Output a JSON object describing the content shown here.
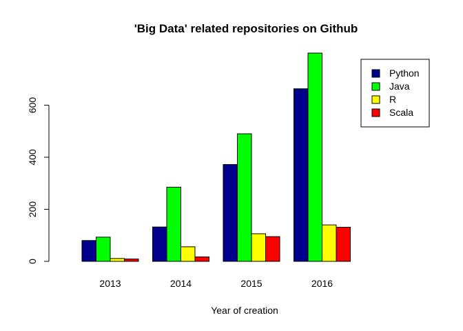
{
  "chart_data": {
    "type": "bar",
    "title": "'Big Data' related repositories on Github",
    "xlabel": "Year of creation",
    "ylabel": "",
    "categories": [
      "2013",
      "2014",
      "2015",
      "2016"
    ],
    "series": [
      {
        "name": "Python",
        "color": "#00008B",
        "values": [
          80,
          132,
          372,
          663
        ]
      },
      {
        "name": "Java",
        "color": "#00FF00",
        "values": [
          93,
          285,
          490,
          800
        ]
      },
      {
        "name": "R",
        "color": "#FFFF00",
        "values": [
          11,
          56,
          106,
          140
        ]
      },
      {
        "name": "Scala",
        "color": "#FF0000",
        "values": [
          9,
          17,
          95,
          131
        ]
      }
    ],
    "yticks": [
      0,
      200,
      400,
      600
    ],
    "ylim": [
      0,
      800
    ],
    "grid": false,
    "legend_position": "top-right"
  }
}
